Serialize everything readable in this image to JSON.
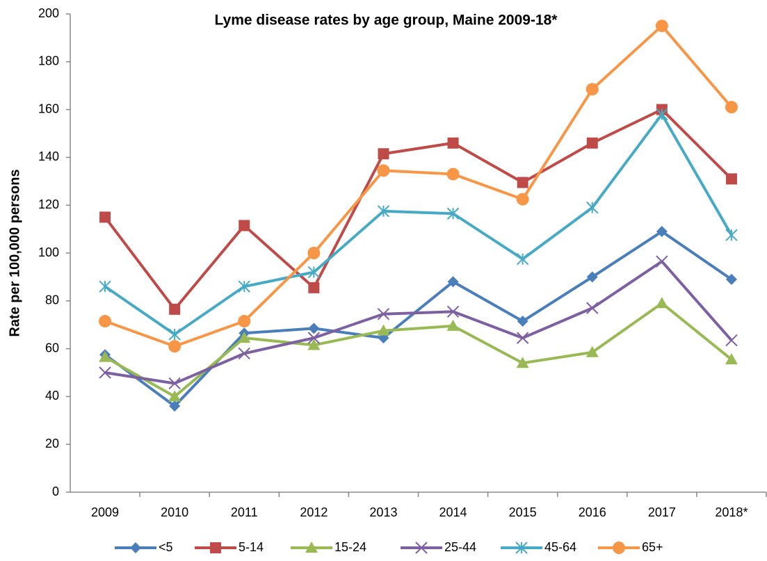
{
  "chart_data": {
    "type": "line",
    "title": "Lyme disease rates by age group, Maine 2009-18*",
    "y_label": "Rate per 100,000 persons",
    "categories": [
      "2009",
      "2010",
      "2011",
      "2012",
      "2013",
      "2014",
      "2015",
      "2016",
      "2017",
      "2018*"
    ],
    "series": [
      {
        "name": "<5",
        "color": "#4a7ebb",
        "marker": "diamond",
        "values": [
          57.5,
          36,
          66.5,
          68.5,
          64.5,
          88,
          71.5,
          90,
          109,
          89
        ]
      },
      {
        "name": "5-14",
        "color": "#be4b48",
        "marker": "square",
        "values": [
          115,
          76.5,
          111.5,
          85.5,
          141.5,
          146,
          129.5,
          146,
          160,
          131
        ]
      },
      {
        "name": "15-24",
        "color": "#98b954",
        "marker": "triangle",
        "values": [
          56.5,
          40,
          64.5,
          61.5,
          67.5,
          69.5,
          54,
          58.5,
          79,
          55.5
        ]
      },
      {
        "name": "25-44",
        "color": "#7d60a0",
        "marker": "x",
        "values": [
          50,
          45.5,
          58,
          64.5,
          74.5,
          75.5,
          64.5,
          77,
          96.5,
          63.5
        ]
      },
      {
        "name": "45-64",
        "color": "#46aac5",
        "marker": "star",
        "values": [
          86,
          66,
          86,
          92,
          117.5,
          116.5,
          97.5,
          119,
          158,
          107.5
        ]
      },
      {
        "name": "65+",
        "color": "#f79646",
        "marker": "circle",
        "values": [
          71.5,
          61,
          71.5,
          100,
          134.5,
          133,
          122.5,
          168.5,
          195,
          161
        ]
      }
    ],
    "ylim": [
      0,
      200
    ],
    "yticks": [
      0,
      20,
      40,
      60,
      80,
      100,
      120,
      140,
      160,
      180,
      200
    ],
    "grid": false,
    "legend": "bottom"
  }
}
